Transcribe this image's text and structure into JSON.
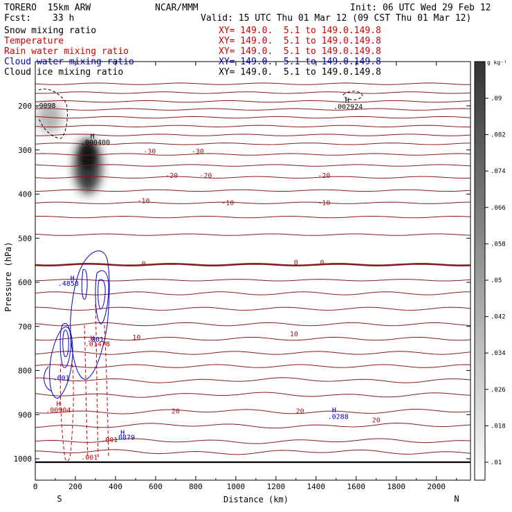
{
  "header": {
    "model": "TORERO  15km ARW",
    "center": "NCAR/MMM",
    "init": "Init: 06 UTC Wed 29 Feb 12",
    "fcst_label": "Fcst:",
    "fcst_value": "33 h",
    "valid": "Valid: 15 UTC Thu 01 Mar 12 (09 CST Thu 01 Mar 12)"
  },
  "fields": [
    {
      "name": "Snow mixing ratio",
      "xy": "XY= 149.0.  5.1 to 149.0.149.8",
      "color": "#000000"
    },
    {
      "name": "Temperature",
      "xy": "XY= 149.0.  5.1 to 149.0.149.8",
      "color": "#cc0000"
    },
    {
      "name": "Rain water mixing ratio",
      "xy": "XY= 149.0.  5.1 to 149.0.149.8",
      "color": "#cc0000"
    },
    {
      "name": "Cloud water mixing ratio",
      "xy": "XY= 149.0.  5.1 to 149.0.149.8",
      "color": "#0000cc"
    },
    {
      "name": "Cloud ice mixing ratio",
      "xy": "XY= 149.0.  5.1 to 149.0.149.8",
      "color": "#000000"
    }
  ],
  "chart_data": {
    "type": "vertical cross-section",
    "xlabel": "Distance (km)",
    "ylabel": "Pressure (hPa)",
    "xlim": [
      0,
      2170
    ],
    "ylim": [
      1050,
      100
    ],
    "x_ticks": [
      0,
      200,
      400,
      600,
      800,
      1000,
      1200,
      1400,
      1600,
      1800,
      2000
    ],
    "y_ticks": [
      200,
      300,
      400,
      500,
      600,
      700,
      800,
      900,
      1000
    ],
    "x_end_labels": {
      "left": "S",
      "right": "N"
    },
    "colorbar": {
      "unit": "g kg⁻¹",
      "ticks": [
        ".01",
        ".018",
        ".026",
        ".034",
        ".042",
        ".05",
        ".058",
        ".066",
        ".074",
        ".082",
        ".09"
      ]
    },
    "temperature_isotherms": [
      {
        "pressure": 150
      },
      {
        "pressure": 170
      },
      {
        "pressure": 190
      },
      {
        "pressure": 208
      },
      {
        "pressure": 226
      },
      {
        "pressure": 246
      },
      {
        "pressure": 266
      },
      {
        "pressure": 286
      },
      {
        "pressure": 310
      },
      {
        "pressure": 335
      },
      {
        "pressure": 362
      },
      {
        "pressure": 392
      },
      {
        "pressure": 420
      },
      {
        "pressure": 452
      },
      {
        "pressure": 492
      },
      {
        "pressure": 560,
        "bold": true
      },
      {
        "pressure": 595
      },
      {
        "pressure": 625
      },
      {
        "pressure": 660
      },
      {
        "pressure": 695
      },
      {
        "pressure": 728
      },
      {
        "pressure": 760
      },
      {
        "pressure": 790
      },
      {
        "pressure": 822
      },
      {
        "pressure": 855
      },
      {
        "pressure": 893
      },
      {
        "pressure": 925
      },
      {
        "pressure": 960
      },
      {
        "pressure": 985
      }
    ],
    "contour_labels": [
      {
        "text": "-30",
        "x": 570,
        "p": 308,
        "color": "#8b1a1a"
      },
      {
        "text": "-30",
        "x": 810,
        "p": 308,
        "color": "#8b1a1a"
      },
      {
        "text": "-20",
        "x": 680,
        "p": 363,
        "color": "#8b1a1a"
      },
      {
        "text": "-20",
        "x": 850,
        "p": 363,
        "color": "#8b1a1a"
      },
      {
        "text": "-20",
        "x": 1440,
        "p": 363,
        "color": "#8b1a1a"
      },
      {
        "text": "-10",
        "x": 540,
        "p": 420,
        "color": "#8b1a1a"
      },
      {
        "text": "-10",
        "x": 960,
        "p": 425,
        "color": "#8b1a1a"
      },
      {
        "text": "-10",
        "x": 1440,
        "p": 425,
        "color": "#8b1a1a"
      },
      {
        "text": "0",
        "x": 540,
        "p": 563,
        "color": "#8b1a1a"
      },
      {
        "text": "0",
        "x": 1300,
        "p": 560,
        "color": "#8b1a1a"
      },
      {
        "text": "0",
        "x": 1430,
        "p": 560,
        "color": "#8b1a1a"
      },
      {
        "text": "10",
        "x": 505,
        "p": 730,
        "color": "#8b1a1a"
      },
      {
        "text": "10",
        "x": 1290,
        "p": 722,
        "color": "#8b1a1a"
      },
      {
        "text": "20",
        "x": 700,
        "p": 897,
        "color": "#8b1a1a"
      },
      {
        "text": "20",
        "x": 1320,
        "p": 897,
        "color": "#8b1a1a"
      },
      {
        "text": "20",
        "x": 1700,
        "p": 918,
        "color": "#8b1a1a"
      },
      {
        "text": "H",
        "x": 285,
        "p": 274,
        "color": "#000000"
      },
      {
        "text": ".000400",
        "x": 300,
        "p": 288,
        "color": "#000000"
      },
      {
        "text": "H",
        "x": 1555,
        "p": 193,
        "color": "#000000"
      },
      {
        "text": ".002924",
        "x": 1560,
        "p": 207,
        "color": "#000000"
      },
      {
        "text": ".9098",
        "x": 50,
        "p": 205,
        "color": "#000000"
      },
      {
        "text": "H",
        "x": 185,
        "p": 596,
        "color": "#0000cc"
      },
      {
        "text": ".4858",
        "x": 165,
        "p": 608,
        "color": "#0000cc"
      },
      {
        "text": "H",
        "x": 285,
        "p": 732,
        "color": "#cc0000"
      },
      {
        "text": ".001",
        "x": 300,
        "p": 735,
        "color": "#0000cc"
      },
      {
        "text": ".01478",
        "x": 310,
        "p": 745,
        "color": "#cc0000"
      },
      {
        "text": ".001",
        "x": 130,
        "p": 822,
        "color": "#0000cc"
      },
      {
        "text": "H",
        "x": 115,
        "p": 881,
        "color": "#cc0000"
      },
      {
        "text": ".00904",
        "x": 115,
        "p": 895,
        "color": "#cc0000"
      },
      {
        "text": "H",
        "x": 435,
        "p": 946,
        "color": "#0000cc"
      },
      {
        "text": ".0879",
        "x": 445,
        "p": 957,
        "color": "#0000cc"
      },
      {
        "text": ".001",
        "x": 370,
        "p": 962,
        "color": "#cc0000"
      },
      {
        "text": ".001",
        "x": 270,
        "p": 1002,
        "color": "#cc0000"
      },
      {
        "text": "H",
        "x": 1490,
        "p": 895,
        "color": "#0000cc"
      },
      {
        "text": ".0288",
        "x": 1510,
        "p": 910,
        "color": "#0000cc"
      }
    ]
  }
}
